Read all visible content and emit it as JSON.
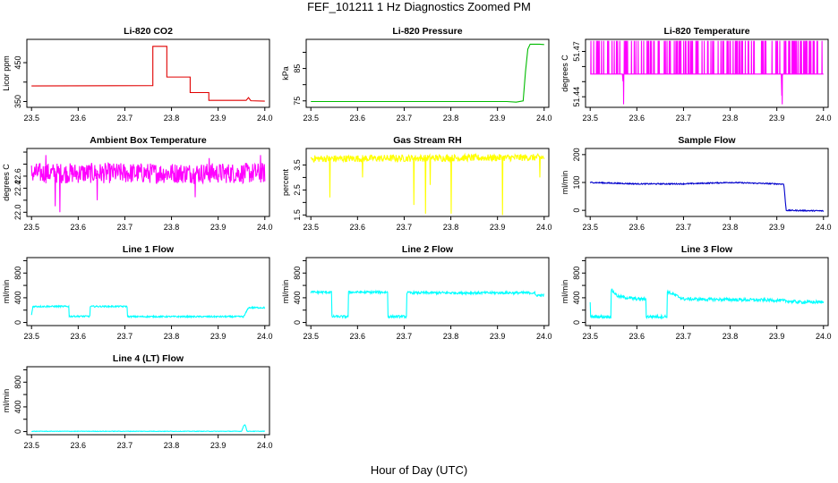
{
  "main_title": "FEF_101211  1 Hz Diagnostics Zoomed PM",
  "xlabel": "Hour of Day (UTC)",
  "chart_data": [
    {
      "type": "line",
      "title": "Li-820 CO2",
      "ylabel": "Licor ppm",
      "color": "#e00000",
      "xlim": [
        23.49,
        24.01
      ],
      "xticks": [
        23.5,
        23.6,
        23.7,
        23.8,
        23.9,
        24.0
      ],
      "ylim": [
        335,
        510
      ],
      "yticks": [
        350,
        400,
        450
      ],
      "ytick_labels": [
        "350",
        "",
        "450"
      ],
      "x": [
        23.5,
        23.76,
        23.76,
        23.79,
        23.79,
        23.84,
        23.84,
        23.88,
        23.88,
        23.96,
        23.965,
        23.97,
        24.0
      ],
      "y": [
        390,
        391,
        492,
        492,
        413,
        413,
        373,
        373,
        353,
        353,
        360,
        352,
        351
      ]
    },
    {
      "type": "line",
      "title": "Li-820 Pressure",
      "ylabel": "kPa",
      "color": "#00bb00",
      "xlim": [
        23.49,
        24.01
      ],
      "xticks": [
        23.5,
        23.6,
        23.7,
        23.8,
        23.9,
        24.0
      ],
      "ylim": [
        73,
        94
      ],
      "yticks": [
        75,
        80,
        85,
        90
      ],
      "ytick_labels": [
        "75",
        "",
        "85",
        ""
      ],
      "x": [
        23.5,
        23.92,
        23.94,
        23.955,
        23.96,
        23.965,
        23.97,
        23.99,
        24.0
      ],
      "y": [
        74.8,
        74.8,
        74.6,
        75.0,
        84.0,
        91.0,
        92.5,
        92.5,
        92.4
      ]
    },
    {
      "type": "line",
      "title": "Li-820 Temperature",
      "ylabel": "degrees C",
      "color": "#ff00ff",
      "xlim": [
        23.49,
        24.01
      ],
      "xticks": [
        23.5,
        23.6,
        23.7,
        23.8,
        23.9,
        24.0
      ],
      "ylim": [
        51.433,
        51.478
      ],
      "yticks": [
        51.44,
        51.45,
        51.46,
        51.47
      ],
      "ytick_labels": [
        "51.44",
        "",
        "",
        "51.47"
      ],
      "x": [
        23.5,
        23.57,
        23.571,
        23.572,
        23.91,
        23.911,
        23.912,
        24.0
      ],
      "y": [
        51.455,
        51.455,
        51.435,
        51.455,
        51.455,
        51.435,
        51.455,
        51.455
      ],
      "noise": {
        "kind": "bimodal",
        "low": 51.455,
        "high": 51.477,
        "density": 0.35
      }
    },
    {
      "type": "line",
      "title": "Ambient Box Temperature",
      "ylabel": "degrees C",
      "color": "#ff00ff",
      "xlim": [
        23.49,
        24.01
      ],
      "xticks": [
        23.5,
        23.6,
        23.7,
        23.8,
        23.9,
        24.0
      ],
      "ylim": [
        21.93,
        23.06
      ],
      "yticks": [
        22.0,
        22.2,
        22.4,
        22.6,
        22.8,
        23.0
      ],
      "ytick_labels": [
        "22.0",
        "",
        "22.4",
        "22.6",
        "",
        ""
      ],
      "x": [
        23.5,
        24.0
      ],
      "y": [
        22.65,
        22.65
      ],
      "noise": {
        "kind": "band",
        "amplitude": 0.17,
        "spikes": [
          [
            23.56,
            22.0
          ],
          [
            23.64,
            22.2
          ],
          [
            23.55,
            22.1
          ],
          [
            23.85,
            22.25
          ],
          [
            23.53,
            22.95
          ],
          [
            23.88,
            22.9
          ],
          [
            23.99,
            22.95
          ]
        ]
      }
    },
    {
      "type": "line",
      "title": "Gas Stream RH",
      "ylabel": "percent",
      "color": "#ffff00",
      "xlim": [
        23.49,
        24.01
      ],
      "xticks": [
        23.5,
        23.6,
        23.7,
        23.8,
        23.9,
        24.0
      ],
      "ylim": [
        1.44,
        4.16
      ],
      "yticks": [
        1.5,
        2.0,
        2.5,
        3.0,
        3.5
      ],
      "ytick_labels": [
        "1.5",
        "",
        "2.5",
        "",
        "3.5"
      ],
      "x": [
        23.5,
        24.0
      ],
      "y": [
        3.75,
        3.8
      ],
      "noise": {
        "kind": "band",
        "amplitude": 0.14,
        "spikes": [
          [
            23.54,
            2.2
          ],
          [
            23.61,
            3.0
          ],
          [
            23.72,
            1.9
          ],
          [
            23.745,
            1.55
          ],
          [
            23.755,
            2.7
          ],
          [
            23.8,
            1.55
          ],
          [
            23.91,
            1.5
          ],
          [
            23.99,
            3.0
          ]
        ]
      }
    },
    {
      "type": "line",
      "title": "Sample Flow",
      "ylabel": "ml/min",
      "color": "#0000cc",
      "xlim": [
        23.49,
        24.01
      ],
      "xticks": [
        23.5,
        23.6,
        23.7,
        23.8,
        23.9,
        24.0
      ],
      "ylim": [
        -22,
        222
      ],
      "yticks": [
        0,
        100,
        200
      ],
      "ytick_labels": [
        "0",
        "100",
        "200"
      ],
      "x": [
        23.5,
        23.6,
        23.7,
        23.8,
        23.9,
        23.915,
        23.92,
        24.0
      ],
      "y": [
        100,
        95,
        95,
        100,
        95,
        94,
        0,
        -2
      ],
      "noise": {
        "kind": "band",
        "amplitude": 2,
        "spikes": []
      }
    },
    {
      "type": "line",
      "title": "Line 1 Flow",
      "ylabel": "ml/min",
      "color": "#00ffff",
      "xlim": [
        23.49,
        24.01
      ],
      "xticks": [
        23.5,
        23.6,
        23.7,
        23.8,
        23.9,
        24.0
      ],
      "ylim": [
        -50,
        1050
      ],
      "yticks": [
        0,
        200,
        400,
        600,
        800,
        1000
      ],
      "ytick_labels": [
        "0",
        "",
        "400",
        "",
        "800",
        ""
      ],
      "x": [
        23.5,
        23.503,
        23.58,
        23.58,
        23.625,
        23.625,
        23.705,
        23.705,
        23.955,
        23.965,
        24.0
      ],
      "y": [
        120,
        260,
        260,
        100,
        100,
        260,
        260,
        95,
        95,
        240,
        240
      ],
      "noise": {
        "kind": "band",
        "amplitude": 12,
        "spikes": []
      }
    },
    {
      "type": "line",
      "title": "Line 2 Flow",
      "ylabel": "ml/min",
      "color": "#00ffff",
      "xlim": [
        23.49,
        24.01
      ],
      "xticks": [
        23.5,
        23.6,
        23.7,
        23.8,
        23.9,
        24.0
      ],
      "ylim": [
        -50,
        1050
      ],
      "yticks": [
        0,
        200,
        400,
        600,
        800,
        1000
      ],
      "ytick_labels": [
        "0",
        "",
        "400",
        "",
        "800",
        ""
      ],
      "x": [
        23.5,
        23.545,
        23.545,
        23.58,
        23.58,
        23.665,
        23.665,
        23.705,
        23.705,
        23.98,
        23.98,
        24.0
      ],
      "y": [
        490,
        490,
        95,
        95,
        490,
        490,
        95,
        95,
        480,
        480,
        440,
        440
      ],
      "noise": {
        "kind": "band",
        "amplitude": 20,
        "spikes": []
      }
    },
    {
      "type": "line",
      "title": "Line 3 Flow",
      "ylabel": "ml/min",
      "color": "#00ffff",
      "xlim": [
        23.49,
        24.01
      ],
      "xticks": [
        23.5,
        23.6,
        23.7,
        23.8,
        23.9,
        24.0
      ],
      "ylim": [
        -50,
        1050
      ],
      "yticks": [
        0,
        200,
        400,
        600,
        800,
        1000
      ],
      "ytick_labels": [
        "0",
        "",
        "400",
        "",
        "800",
        ""
      ],
      "x": [
        23.5,
        23.5,
        23.545,
        23.545,
        23.56,
        23.6,
        23.62,
        23.62,
        23.665,
        23.665,
        23.7,
        23.8,
        23.9,
        23.95,
        24.0
      ],
      "y": [
        320,
        95,
        95,
        530,
        420,
        380,
        380,
        95,
        95,
        500,
        380,
        370,
        360,
        330,
        330
      ],
      "noise": {
        "kind": "band",
        "amplitude": 25,
        "spikes": []
      }
    },
    {
      "type": "line",
      "title": "Line 4 (LT) Flow",
      "ylabel": "ml/min",
      "color": "#00ffff",
      "xlim": [
        23.49,
        24.01
      ],
      "xticks": [
        23.5,
        23.6,
        23.7,
        23.8,
        23.9,
        24.0
      ],
      "ylim": [
        -50,
        1050
      ],
      "yticks": [
        0,
        200,
        400,
        600,
        800,
        1000
      ],
      "ytick_labels": [
        "0",
        "",
        "400",
        "",
        "800",
        ""
      ],
      "x": [
        23.5,
        23.95,
        23.955,
        23.958,
        23.962,
        24.0
      ],
      "y": [
        5,
        5,
        100,
        110,
        5,
        5
      ],
      "noise": {
        "kind": "band",
        "amplitude": 4,
        "spikes": []
      }
    }
  ]
}
